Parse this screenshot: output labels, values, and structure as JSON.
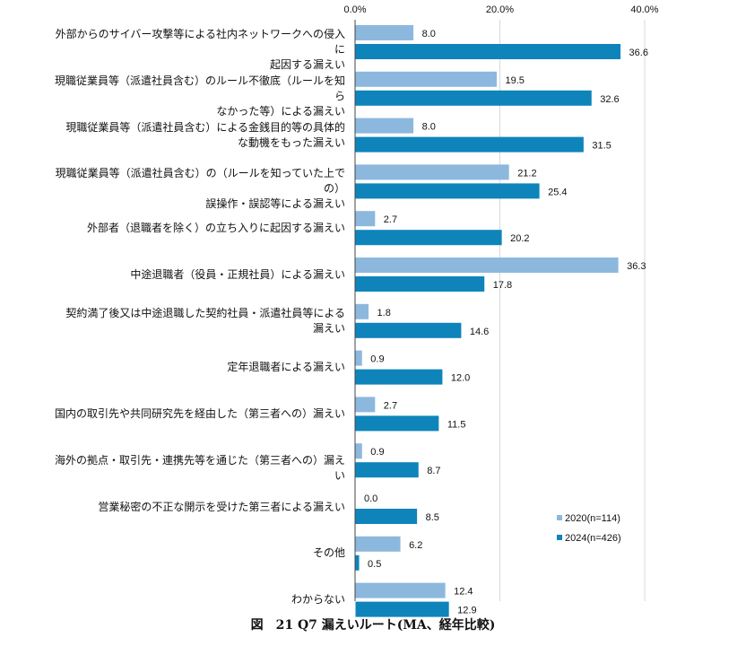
{
  "caption": "図　21 Q7 漏えいルート(MA、経年比較)",
  "chart_data": {
    "type": "bar",
    "orientation": "horizontal",
    "title": "図　21 Q7 漏えいルート(MA、経年比較)",
    "xlim": [
      0,
      40
    ],
    "x_ticks": [
      "0.0%",
      "20.0%",
      "40.0%"
    ],
    "x_tick_values": [
      0,
      20,
      40
    ],
    "categories": [
      "外部からのサイバー攻撃等による社内ネットワークへの侵入に\n起因する漏えい",
      "現職従業員等（派遣社員含む）のルール不徹底（ルールを知ら\nなかった等）による漏えい",
      "現職従業員等（派遣社員含む）による金銭目的等の具体的\nな動機をもった漏えい",
      "現職従業員等（派遣社員含む）の（ルールを知っていた上での）\n誤操作・誤認等による漏えい",
      "外部者（退職者を除く）の立ち入りに起因する漏えい",
      "中途退職者（役員・正規社員）による漏えい",
      "契約満了後又は中途退職した契約社員・派遣社員等による\n漏えい",
      "定年退職者による漏えい",
      "国内の取引先や共同研究先を経由した（第三者への）漏えい",
      "海外の拠点・取引先・連携先等を通じた（第三者への）漏えい",
      "営業秘密の不正な開示を受けた第三者による漏えい",
      "その他",
      "わからない"
    ],
    "series": [
      {
        "name": "2020(n=114)",
        "color": "#8db8de",
        "values": [
          8.0,
          19.5,
          8.0,
          21.2,
          2.7,
          36.3,
          1.8,
          0.9,
          2.7,
          0.9,
          0.0,
          6.2,
          12.4
        ],
        "labels": [
          "8.0",
          "19.5",
          "8.0",
          "21.2",
          "2.7",
          "36.3",
          "1.8",
          "0.9",
          "2.7",
          "0.9",
          "0.0",
          "6.2",
          "12.4"
        ]
      },
      {
        "name": "2024(n=426)",
        "color": "#0e84bb",
        "values": [
          36.6,
          32.6,
          31.5,
          25.4,
          20.2,
          17.8,
          14.6,
          12.0,
          11.5,
          8.7,
          8.5,
          0.5,
          12.9
        ],
        "labels": [
          "36.6",
          "32.6",
          "31.5",
          "25.4",
          "20.2",
          "17.8",
          "14.6",
          "12.0",
          "11.5",
          "8.7",
          "8.5",
          "0.5",
          "12.9"
        ]
      }
    ],
    "legend": "bottom-right",
    "grid": true
  }
}
